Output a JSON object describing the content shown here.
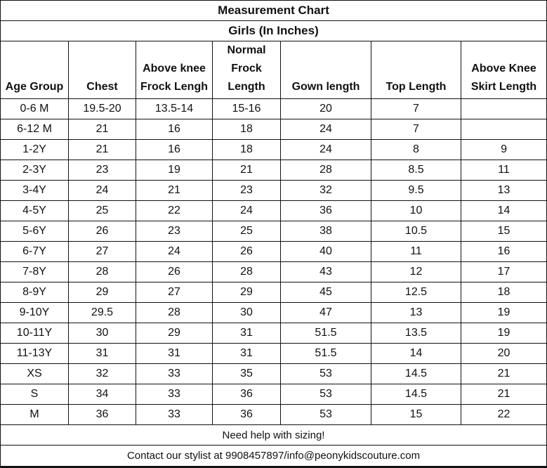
{
  "title": "Measurement Chart",
  "subtitle": "Girls (In Inches)",
  "columns": [
    [
      "Age Group"
    ],
    [
      "Chest"
    ],
    [
      "Above knee",
      "Frock Lengh"
    ],
    [
      "Normal",
      "Frock",
      "Length"
    ],
    [
      "Gown length"
    ],
    [
      "Top Length"
    ],
    [
      "Above Knee",
      "Skirt Length"
    ]
  ],
  "rows": [
    [
      "0-6 M",
      "19.5-20",
      "13.5-14",
      "15-16",
      "20",
      "7",
      ""
    ],
    [
      "6-12 M",
      "21",
      "16",
      "18",
      "24",
      "7",
      ""
    ],
    [
      "1-2Y",
      "21",
      "16",
      "18",
      "24",
      "8",
      "9"
    ],
    [
      "2-3Y",
      "23",
      "19",
      "21",
      "28",
      "8.5",
      "11"
    ],
    [
      "3-4Y",
      "24",
      "21",
      "23",
      "32",
      "9.5",
      "13"
    ],
    [
      "4-5Y",
      "25",
      "22",
      "24",
      "36",
      "10",
      "14"
    ],
    [
      "5-6Y",
      "26",
      "23",
      "25",
      "38",
      "10.5",
      "15"
    ],
    [
      "6-7Y",
      "27",
      "24",
      "26",
      "40",
      "11",
      "16"
    ],
    [
      "7-8Y",
      "28",
      "26",
      "28",
      "43",
      "12",
      "17"
    ],
    [
      "8-9Y",
      "29",
      "27",
      "29",
      "45",
      "12.5",
      "18"
    ],
    [
      "9-10Y",
      "29.5",
      "28",
      "30",
      "47",
      "13",
      "19"
    ],
    [
      "10-11Y",
      "30",
      "29",
      "31",
      "51.5",
      "13.5",
      "19"
    ],
    [
      "11-13Y",
      "31",
      "31",
      "31",
      "51.5",
      "14",
      "20"
    ],
    [
      "XS",
      "32",
      "33",
      "35",
      "53",
      "14.5",
      "21"
    ],
    [
      "S",
      "34",
      "33",
      "36",
      "53",
      "14.5",
      "21"
    ],
    [
      "M",
      "36",
      "33",
      "36",
      "53",
      "15",
      "22"
    ]
  ],
  "footer": {
    "help": "Need help with sizing!",
    "contact": "Contact our stylist at 9908457897/info@peonykidscouture.com"
  }
}
